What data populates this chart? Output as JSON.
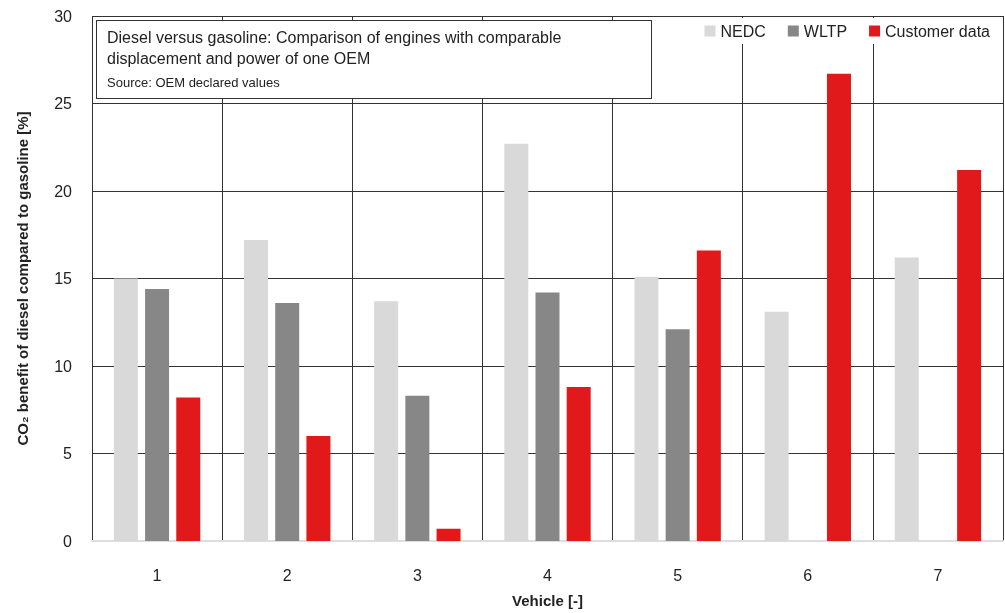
{
  "chart_data": {
    "type": "bar",
    "title": "Diesel versus gasoline: Comparison of engines with comparable displacement and power of one OEM",
    "annotations": [
      "Source: OEM declared values"
    ],
    "xlabel": "Vehicle [-]",
    "ylabel": "CO₂ benefit of diesel compared to gasoline [%]",
    "categories": [
      "1",
      "2",
      "3",
      "4",
      "5",
      "6",
      "7"
    ],
    "series": [
      {
        "name": "NEDC",
        "color": "#d9d9d9",
        "values": [
          15.0,
          17.2,
          13.7,
          22.7,
          15.1,
          13.1,
          16.2
        ]
      },
      {
        "name": "WLTP",
        "color": "#878787",
        "values": [
          14.4,
          13.6,
          8.3,
          14.2,
          12.1,
          null,
          null
        ]
      },
      {
        "name": "Customer data",
        "color": "#e1191b",
        "values": [
          8.2,
          6.0,
          0.7,
          8.8,
          16.6,
          26.7,
          21.2
        ]
      }
    ],
    "ylim": [
      0,
      30
    ],
    "yticks": [
      0,
      5,
      10,
      15,
      20,
      25,
      30
    ],
    "grid": true,
    "legend": "top right"
  }
}
